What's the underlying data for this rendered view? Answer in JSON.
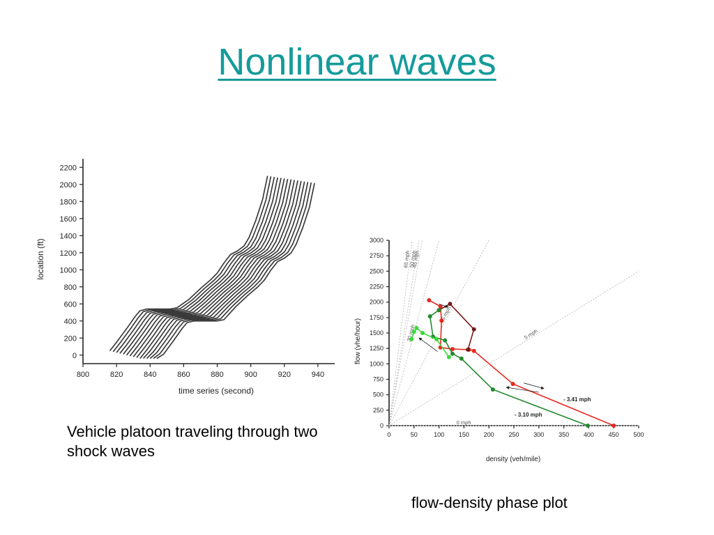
{
  "slide": {
    "title": "Nonlinear waves",
    "left_caption": "Vehicle platoon traveling through two shock waves",
    "right_caption": "flow-density phase plot"
  },
  "colors": {
    "title": "#159b9b",
    "trajectory": "#3a3a3a",
    "red": "#e8271e",
    "dark_red": "#7a1a1a",
    "green": "#238a2f",
    "light_green": "#3ad83a"
  },
  "chart_data": [
    {
      "type": "line",
      "xlabel": "time series (second)",
      "ylabel": "location (ft)",
      "xlim": [
        800,
        950
      ],
      "ylim": [
        -100,
        2300
      ],
      "xticks": [
        800,
        820,
        840,
        860,
        880,
        900,
        920,
        940
      ],
      "yticks": [
        0,
        200,
        400,
        600,
        800,
        1000,
        1200,
        1400,
        1600,
        1800,
        2000,
        2200
      ],
      "grid": false,
      "trajectory_offsets_seconds": [
        0,
        2,
        4,
        6,
        8,
        10,
        12,
        14,
        16,
        18,
        20,
        22,
        24,
        26,
        28
      ],
      "base_trajectory": [
        [
          816,
          50
        ],
        [
          820,
          150
        ],
        [
          826,
          310
        ],
        [
          831,
          450
        ],
        [
          834,
          520
        ],
        [
          838,
          540
        ],
        [
          846,
          540
        ],
        [
          852,
          540
        ],
        [
          856,
          555
        ],
        [
          863,
          650
        ],
        [
          870,
          780
        ],
        [
          876,
          880
        ],
        [
          880,
          960
        ],
        [
          884,
          1080
        ],
        [
          888,
          1180
        ],
        [
          892,
          1220
        ],
        [
          896,
          1280
        ],
        [
          899,
          1380
        ],
        [
          903,
          1580
        ],
        [
          907,
          1820
        ],
        [
          910,
          2100
        ]
      ]
    },
    {
      "type": "scatter",
      "xlabel": "density (veh/mile)",
      "ylabel": "flow (vhe/hour)",
      "xlim": [
        0,
        500
      ],
      "ylim": [
        0,
        3000
      ],
      "xticks": [
        0,
        50,
        100,
        150,
        200,
        250,
        300,
        350,
        400,
        450,
        500
      ],
      "yticks": [
        0,
        250,
        500,
        750,
        1000,
        1250,
        1500,
        1750,
        2000,
        2250,
        2500,
        2750,
        3000
      ],
      "grid": false,
      "speed_rays": [
        {
          "label": "0 mph",
          "speed": 0
        },
        {
          "label": "5 mph",
          "speed": 5
        },
        {
          "label": "15 mph",
          "speed": 15
        },
        {
          "label": "30 mph",
          "speed": 30
        },
        {
          "label": "45 mph",
          "speed": 45
        },
        {
          "label": "50 mph",
          "speed": 50
        },
        {
          "label": "65 mph",
          "speed": 65
        }
      ],
      "series": [
        {
          "color": "#e8271e",
          "points": [
            [
              450,
              0
            ],
            [
              248,
              675
            ],
            [
              170,
              1210
            ],
            [
              160,
              1230
            ],
            [
              127,
              1240
            ],
            [
              103,
              1265
            ],
            [
              105,
              1700
            ],
            [
              103,
              1930
            ],
            [
              80,
              2030
            ]
          ]
        },
        {
          "color": "#7a1a1a",
          "points": [
            [
              100,
              1870
            ],
            [
              122,
              1970
            ],
            [
              170,
              1560
            ],
            [
              158,
              1230
            ]
          ]
        },
        {
          "color": "#238a2f",
          "points": [
            [
              398,
              0
            ],
            [
              208,
              585
            ],
            [
              145,
              1085
            ],
            [
              127,
              1165
            ],
            [
              112,
              1380
            ],
            [
              88,
              1440
            ],
            [
              82,
              1770
            ],
            [
              100,
              1870
            ]
          ]
        },
        {
          "color": "#3ad83a",
          "points": [
            [
              120,
              1110
            ],
            [
              95,
              1400
            ],
            [
              67,
              1500
            ],
            [
              55,
              1580
            ],
            [
              50,
              1520
            ],
            [
              45,
              1400
            ]
          ]
        }
      ],
      "annotations": [
        "- 3.41 mph",
        "- 3.10 mph"
      ]
    }
  ]
}
